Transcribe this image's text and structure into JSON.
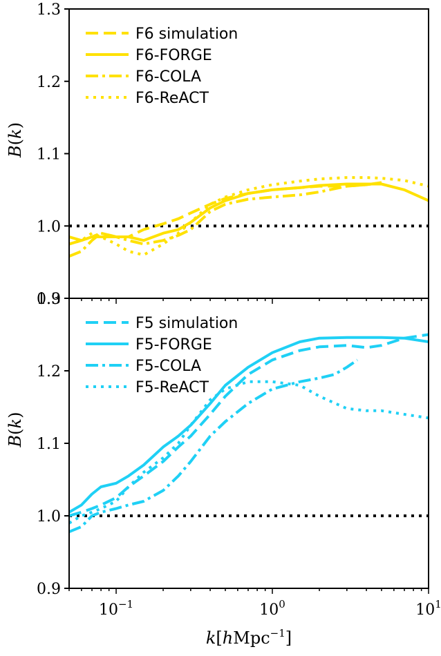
{
  "colors": {
    "f6": "#FFE100",
    "f5": "#1FD0F5",
    "reference": "#000000"
  },
  "chart_data": [
    {
      "type": "line",
      "panel": "top",
      "xscale": "log",
      "xlim": [
        0.05,
        10
      ],
      "ylim": [
        0.9,
        1.3
      ],
      "yticks": [
        "0.9",
        "1.0",
        "1.1",
        "1.2",
        "1.3"
      ],
      "xticks": [],
      "xlabel": "",
      "ylabel": "B(k)",
      "color_key": "f6",
      "legend_position": "top-left",
      "reference_line": 1.0,
      "series": [
        {
          "name": "F6 simulation",
          "style": "dashed",
          "x": [
            0.05,
            0.06,
            0.07,
            0.08,
            0.1,
            0.12,
            0.15,
            0.2,
            0.25,
            0.3,
            0.4,
            0.5,
            0.7,
            1,
            1.5,
            2,
            3,
            4,
            5
          ],
          "y": [
            0.985,
            0.98,
            0.985,
            0.99,
            0.985,
            0.985,
            0.995,
            1.003,
            1.01,
            1.018,
            1.03,
            1.038,
            1.045,
            1.05,
            1.053,
            1.055,
            1.055,
            1.057,
            1.06
          ]
        },
        {
          "name": "F6-FORGE",
          "style": "solid",
          "x": [
            0.05,
            0.06,
            0.07,
            0.08,
            0.1,
            0.12,
            0.15,
            0.2,
            0.25,
            0.3,
            0.4,
            0.5,
            0.7,
            1,
            1.5,
            2,
            3,
            4,
            5,
            7,
            10
          ],
          "y": [
            0.975,
            0.98,
            0.985,
            0.985,
            0.985,
            0.985,
            0.98,
            0.99,
            0.995,
            1.005,
            1.025,
            1.035,
            1.045,
            1.05,
            1.053,
            1.056,
            1.058,
            1.058,
            1.058,
            1.05,
            1.035
          ]
        },
        {
          "name": "F6-COLA",
          "style": "dashdot",
          "x": [
            0.05,
            0.06,
            0.07,
            0.08,
            0.1,
            0.12,
            0.15,
            0.2,
            0.25,
            0.3,
            0.4,
            0.5,
            0.7,
            1,
            1.5,
            2,
            3,
            4,
            5
          ],
          "y": [
            0.958,
            0.965,
            0.98,
            0.99,
            0.985,
            0.98,
            0.975,
            0.98,
            0.987,
            0.995,
            1.02,
            1.03,
            1.037,
            1.04,
            1.043,
            1.047,
            1.055,
            1.057,
            1.06
          ]
        },
        {
          "name": "F6-ReACT",
          "style": "dotted",
          "x": [
            0.05,
            0.06,
            0.07,
            0.08,
            0.1,
            0.12,
            0.15,
            0.2,
            0.25,
            0.3,
            0.4,
            0.5,
            0.7,
            1,
            1.5,
            2,
            3,
            4,
            5,
            7,
            10
          ],
          "y": [
            0.975,
            0.98,
            0.99,
            0.985,
            0.975,
            0.965,
            0.96,
            0.975,
            0.99,
            1.005,
            1.03,
            1.04,
            1.05,
            1.057,
            1.062,
            1.065,
            1.067,
            1.067,
            1.066,
            1.063,
            1.055
          ]
        }
      ]
    },
    {
      "type": "line",
      "panel": "bottom",
      "xscale": "log",
      "xlim": [
        0.05,
        10
      ],
      "ylim": [
        0.9,
        1.3
      ],
      "yticks": [
        "0.9",
        "1.0",
        "1.1",
        "1.2",
        "1.3"
      ],
      "xticks": [
        "10^{-1}",
        "10^{0}",
        "10^{1}"
      ],
      "xlabel": "k[hMpc^{-1}]",
      "ylabel": "B(k)",
      "color_key": "f5",
      "legend_position": "top-left",
      "reference_line": 1.0,
      "series": [
        {
          "name": "F5 simulation",
          "style": "dashed",
          "x": [
            0.05,
            0.06,
            0.07,
            0.08,
            0.1,
            0.12,
            0.15,
            0.2,
            0.25,
            0.3,
            0.4,
            0.5,
            0.7,
            1,
            1.5,
            2,
            3,
            4,
            5,
            7,
            10
          ],
          "y": [
            1.0,
            1.005,
            1.01,
            1.015,
            1.025,
            1.04,
            1.055,
            1.075,
            1.095,
            1.11,
            1.14,
            1.165,
            1.195,
            1.215,
            1.228,
            1.233,
            1.235,
            1.232,
            1.235,
            1.245,
            1.25
          ]
        },
        {
          "name": "F5-FORGE",
          "style": "solid",
          "x": [
            0.05,
            0.06,
            0.07,
            0.08,
            0.1,
            0.12,
            0.15,
            0.2,
            0.25,
            0.3,
            0.4,
            0.5,
            0.7,
            1,
            1.5,
            2,
            3,
            4,
            5,
            7,
            10
          ],
          "y": [
            1.005,
            1.015,
            1.03,
            1.04,
            1.045,
            1.055,
            1.07,
            1.095,
            1.11,
            1.125,
            1.155,
            1.18,
            1.205,
            1.225,
            1.24,
            1.245,
            1.246,
            1.246,
            1.246,
            1.245,
            1.24
          ]
        },
        {
          "name": "F5-COLA",
          "style": "dashdot",
          "x": [
            0.05,
            0.06,
            0.07,
            0.08,
            0.1,
            0.12,
            0.15,
            0.2,
            0.25,
            0.3,
            0.4,
            0.5,
            0.7,
            1,
            1.5,
            2,
            2.5,
            3,
            3.5
          ],
          "y": [
            0.978,
            0.985,
            1.0,
            1.005,
            1.01,
            1.015,
            1.02,
            1.035,
            1.055,
            1.075,
            1.11,
            1.13,
            1.155,
            1.175,
            1.185,
            1.19,
            1.195,
            1.205,
            1.215
          ]
        },
        {
          "name": "F5-ReACT",
          "style": "dotted",
          "x": [
            0.05,
            0.06,
            0.07,
            0.08,
            0.1,
            0.12,
            0.15,
            0.2,
            0.25,
            0.3,
            0.4,
            0.5,
            0.7,
            1,
            1.5,
            2,
            3,
            4,
            5,
            7,
            10
          ],
          "y": [
            0.99,
            1.0,
            1.005,
            1.01,
            1.02,
            1.04,
            1.06,
            1.08,
            1.1,
            1.125,
            1.16,
            1.175,
            1.185,
            1.185,
            1.18,
            1.165,
            1.148,
            1.145,
            1.145,
            1.14,
            1.135
          ]
        }
      ]
    }
  ]
}
